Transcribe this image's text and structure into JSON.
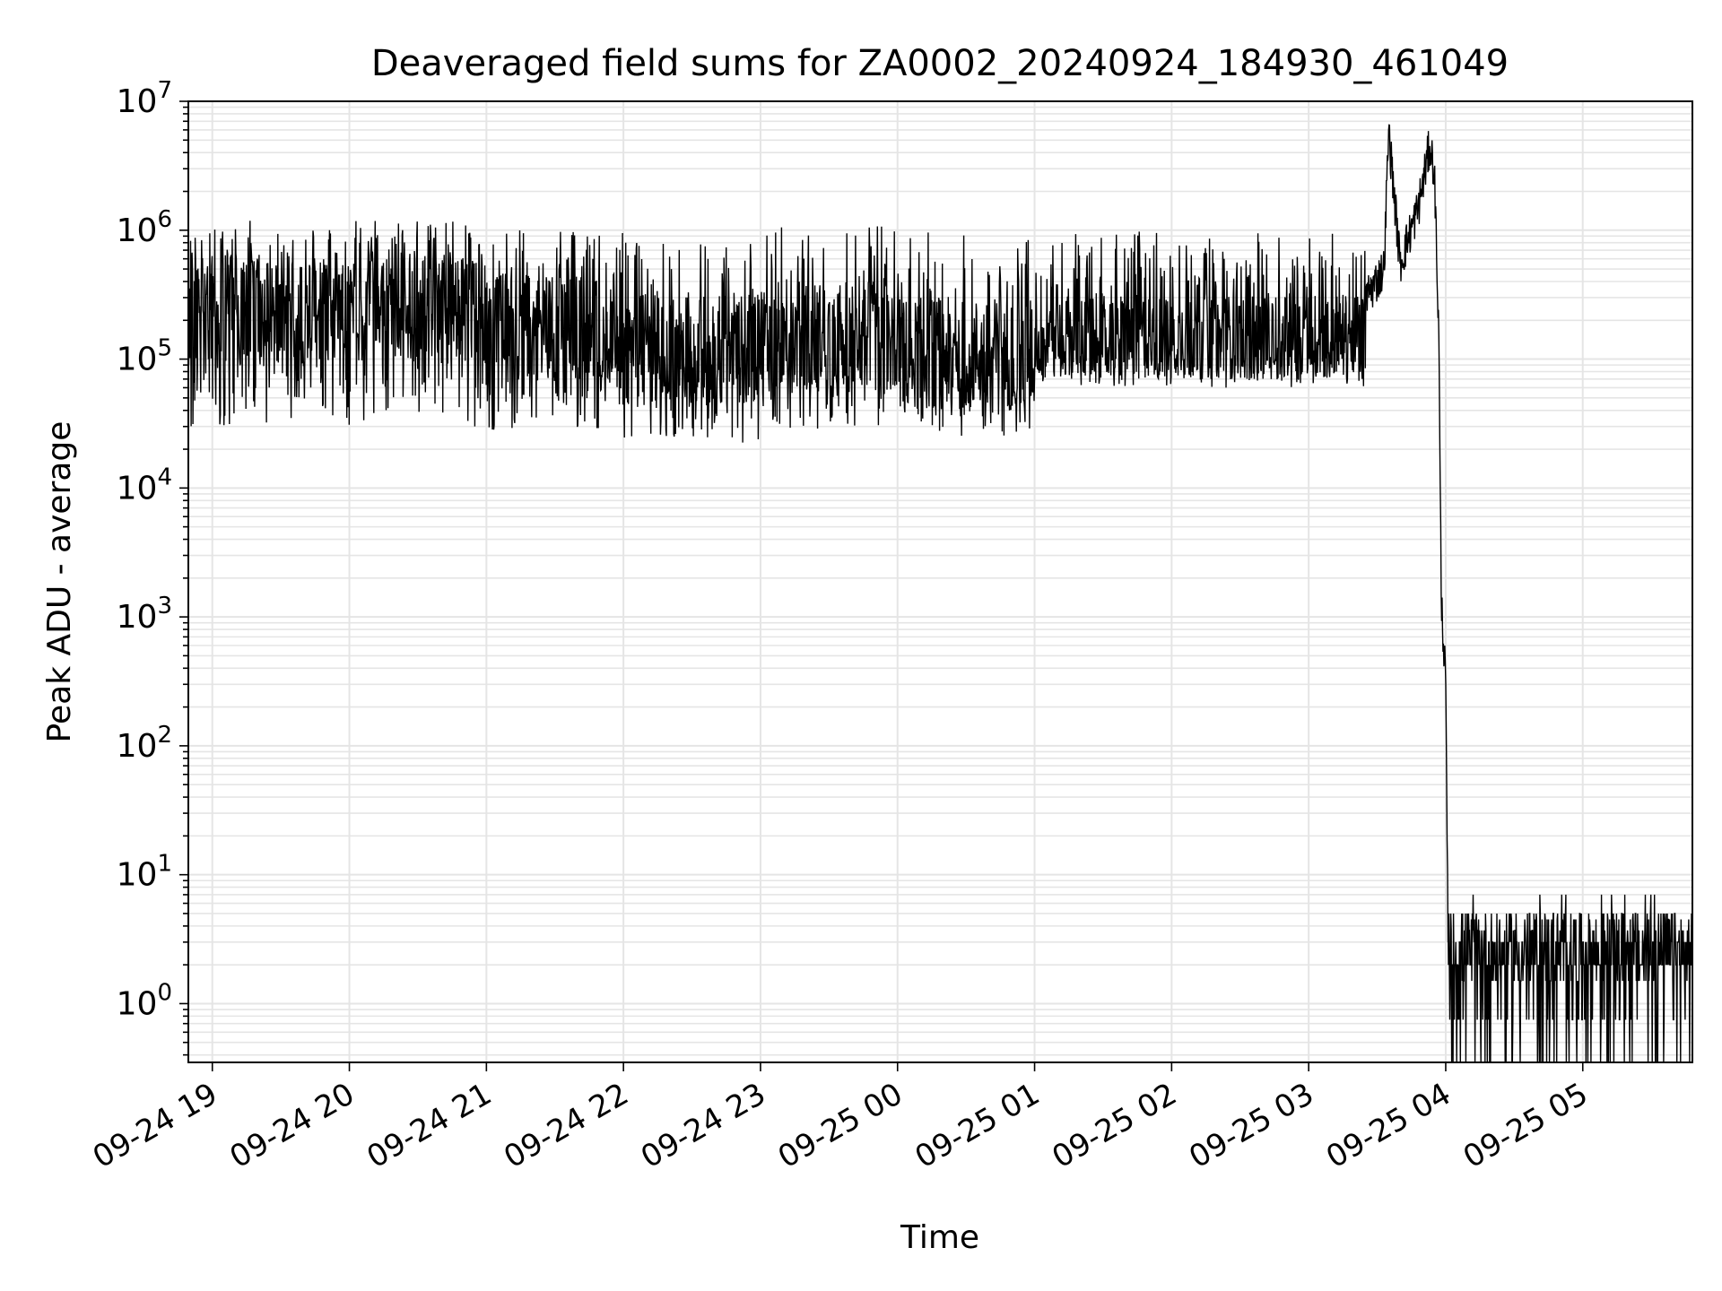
{
  "chart_data": {
    "type": "line",
    "title": "Deaveraged field sums for ZA0002_20240924_184930_461049",
    "xlabel": "Time",
    "ylabel": "Peak ADU - average",
    "yscale": "log",
    "ylim": [
      0.35,
      10000000
    ],
    "xlim": [
      "2024-09-24 18:49:30",
      "2024-09-25 05:48:00"
    ],
    "grid": true,
    "line_color": "#000000",
    "grid_color": "#e5e5e5",
    "x_ticks": [
      {
        "value": "2024-09-24 19:00",
        "label": "09-24 19"
      },
      {
        "value": "2024-09-24 20:00",
        "label": "09-24 20"
      },
      {
        "value": "2024-09-24 21:00",
        "label": "09-24 21"
      },
      {
        "value": "2024-09-24 22:00",
        "label": "09-24 22"
      },
      {
        "value": "2024-09-24 23:00",
        "label": "09-24 23"
      },
      {
        "value": "2024-09-25 00:00",
        "label": "09-25 00"
      },
      {
        "value": "2024-09-25 01:00",
        "label": "09-25 01"
      },
      {
        "value": "2024-09-25 02:00",
        "label": "09-25 02"
      },
      {
        "value": "2024-09-25 03:00",
        "label": "09-25 03"
      },
      {
        "value": "2024-09-25 04:00",
        "label": "09-25 04"
      },
      {
        "value": "2024-09-25 05:00",
        "label": "09-25 05"
      }
    ],
    "y_ticks": [
      {
        "value": 1,
        "base": "10",
        "exp": "0"
      },
      {
        "value": 10,
        "base": "10",
        "exp": "1"
      },
      {
        "value": 100,
        "base": "10",
        "exp": "2"
      },
      {
        "value": 1000,
        "base": "10",
        "exp": "3"
      },
      {
        "value": 10000,
        "base": "10",
        "exp": "4"
      },
      {
        "value": 100000,
        "base": "10",
        "exp": "5"
      },
      {
        "value": 1000000,
        "base": "10",
        "exp": "6"
      },
      {
        "value": 10000000,
        "base": "10",
        "exp": "7"
      }
    ],
    "series": [
      {
        "segments": [
          {
            "start": "2024-09-24 18:49:30",
            "end": "2024-09-24 21:00",
            "low": 30000,
            "high": 1200000,
            "typical": 250000
          },
          {
            "start": "2024-09-24 21:00",
            "end": "2024-09-24 22:00",
            "low": 28000,
            "high": 1000000,
            "typical": 180000
          },
          {
            "start": "2024-09-24 22:00",
            "end": "2024-09-24 23:00",
            "low": 22000,
            "high": 800000,
            "typical": 120000
          },
          {
            "start": "2024-09-24 23:00",
            "end": "2024-09-25 00:00",
            "low": 28000,
            "high": 1100000,
            "typical": 150000
          },
          {
            "start": "2024-09-25 00:00",
            "end": "2024-09-25 01:00",
            "low": 25000,
            "high": 1000000,
            "typical": 110000
          },
          {
            "start": "2024-09-25 01:00",
            "end": "2024-09-25 03:25",
            "low": 60000,
            "high": 1000000,
            "typical": 150000
          }
        ],
        "key_points": [
          {
            "x": "2024-09-25 03:25",
            "y": 300000
          },
          {
            "x": "2024-09-25 03:33",
            "y": 500000
          },
          {
            "x": "2024-09-25 03:35",
            "y": 6000000
          },
          {
            "x": "2024-09-25 03:40",
            "y": 550000
          },
          {
            "x": "2024-09-25 03:48",
            "y": 1500000
          },
          {
            "x": "2024-09-25 03:53",
            "y": 4500000
          },
          {
            "x": "2024-09-25 03:55",
            "y": 3000000
          },
          {
            "x": "2024-09-25 03:57",
            "y": 150000
          },
          {
            "x": "2024-09-25 03:58",
            "y": 1500
          },
          {
            "x": "2024-09-25 04:00",
            "y": 300
          },
          {
            "x": "2024-09-25 04:01",
            "y": 3
          }
        ],
        "tail": {
          "start": "2024-09-25 04:01",
          "end": "2024-09-25 05:48",
          "low": 0.35,
          "high": 7,
          "typical": 2
        }
      }
    ]
  }
}
